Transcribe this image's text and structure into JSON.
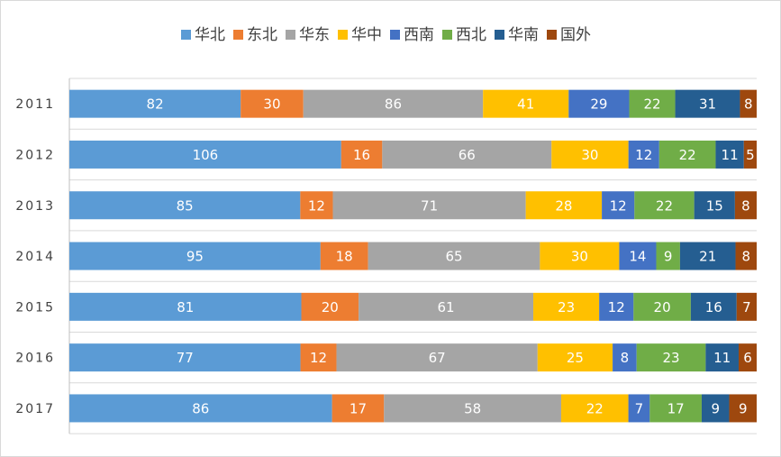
{
  "chart_data": {
    "type": "bar",
    "orientation": "horizontal",
    "stacked": "percent",
    "title": "",
    "xlabel": "",
    "ylabel": "",
    "grid": true,
    "legend_position": "top",
    "categories": [
      "2011",
      "2012",
      "2013",
      "2014",
      "2015",
      "2016",
      "2017"
    ],
    "series": [
      {
        "name": "华北",
        "color": "#5b9bd5",
        "values": [
          82,
          106,
          85,
          95,
          81,
          77,
          86
        ]
      },
      {
        "name": "东北",
        "color": "#ed7d31",
        "values": [
          30,
          16,
          12,
          18,
          20,
          12,
          17
        ]
      },
      {
        "name": "华东",
        "color": "#a5a5a5",
        "values": [
          86,
          66,
          71,
          65,
          61,
          67,
          58
        ]
      },
      {
        "name": "华中",
        "color": "#ffc000",
        "values": [
          41,
          30,
          28,
          30,
          23,
          25,
          22
        ]
      },
      {
        "name": "西南",
        "color": "#4472c4",
        "values": [
          29,
          12,
          12,
          14,
          12,
          8,
          7
        ]
      },
      {
        "name": "西北",
        "color": "#70ad47",
        "values": [
          22,
          22,
          22,
          9,
          20,
          23,
          17
        ]
      },
      {
        "name": "华南",
        "color": "#255e91",
        "values": [
          31,
          11,
          15,
          21,
          16,
          11,
          9
        ]
      },
      {
        "name": "国外",
        "color": "#9e480e",
        "values": [
          8,
          5,
          8,
          8,
          7,
          6,
          9
        ]
      }
    ]
  }
}
